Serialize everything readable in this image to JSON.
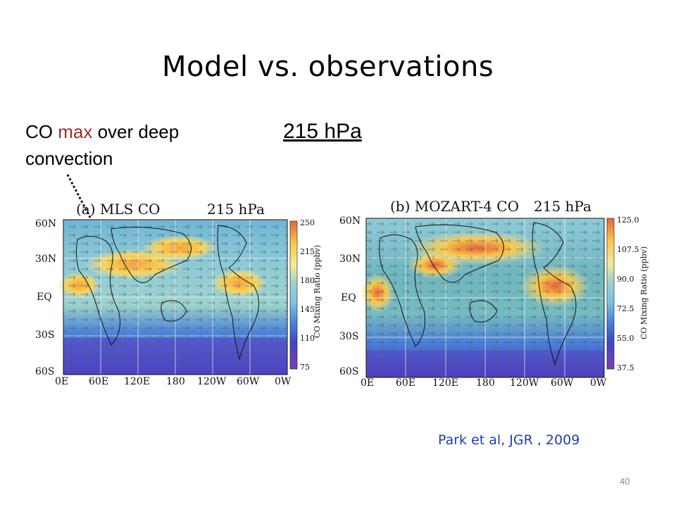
{
  "slide": {
    "title": "Model vs. observations",
    "annotation": {
      "part1": "CO ",
      "highlight": "max",
      "part2": " over deep",
      "line2": "convection"
    },
    "pressure_level": "215 hPa",
    "citation": "Park et al, JGR , 2009",
    "page_number": "40"
  },
  "colors": {
    "annotation_highlight": "#a52a2a",
    "citation": "#1f3fb0"
  },
  "panels": [
    {
      "title_left": "(a) MLS CO",
      "title_right": "215 hPa",
      "lat_labels": [
        "60N",
        "30N",
        "EQ",
        "30S",
        "60S"
      ],
      "lon_labels": [
        "0E",
        "60E",
        "120E",
        "180",
        "120W",
        "60W",
        "0W"
      ],
      "colorbar_ticks": [
        "250",
        "215",
        "180",
        "145",
        "110",
        "75"
      ],
      "colorbar_title": "CO Mixing Ratio (ppbv)"
    },
    {
      "title_left": "(b) MOZART-4 CO",
      "title_right": "215 hPa",
      "lat_labels": [
        "60N",
        "30N",
        "EQ",
        "30S",
        "60S"
      ],
      "lon_labels": [
        "0E",
        "60E",
        "120E",
        "180",
        "120W",
        "60W",
        "0W"
      ],
      "colorbar_ticks": [
        "125.0",
        "107.5",
        "90.0",
        "72.5",
        "55.0",
        "37.5"
      ],
      "colorbar_title": "CO Mixing Ratio (ppbv)"
    }
  ]
}
